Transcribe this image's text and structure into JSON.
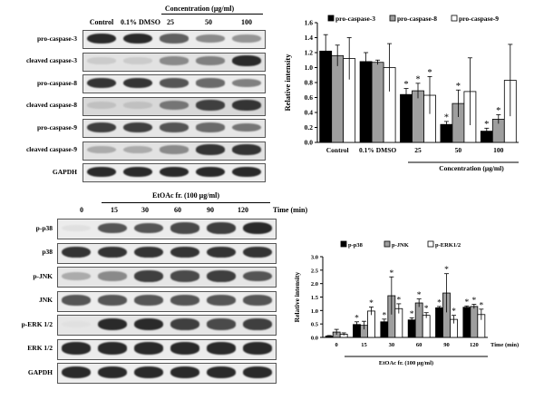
{
  "panel_a": {
    "concentration_title": "Concentration (μg/ml)",
    "lane_labels": [
      "Control",
      "0.1% DMSO",
      "25",
      "50",
      "100"
    ],
    "blots": [
      {
        "label": "pro-caspase-3",
        "intensity": [
          0.9,
          0.9,
          0.65,
          0.45,
          0.4
        ],
        "bg": "#ececec"
      },
      {
        "label": "cleaved caspase-3",
        "intensity": [
          0.15,
          0.15,
          0.45,
          0.5,
          0.9
        ],
        "bg": "#e2e2e2"
      },
      {
        "label": "pro-caspase-8",
        "intensity": [
          0.85,
          0.85,
          0.7,
          0.6,
          0.5
        ],
        "bg": "#ececec"
      },
      {
        "label": "cleaved caspase-8",
        "intensity": [
          0.2,
          0.2,
          0.55,
          0.8,
          0.85
        ],
        "bg": "#d8d8d8"
      },
      {
        "label": "pro-caspase-9",
        "intensity": [
          0.8,
          0.8,
          0.7,
          0.6,
          0.55
        ],
        "bg": "#e6e6e6"
      },
      {
        "label": "cleaved caspase-9",
        "intensity": [
          0.3,
          0.3,
          0.45,
          0.85,
          0.85
        ],
        "bg": "#e2e2e2"
      },
      {
        "label": "GAPDH",
        "intensity": [
          0.9,
          0.9,
          0.9,
          0.9,
          0.9
        ],
        "bg": "#eeeeee"
      }
    ]
  },
  "panel_b": {
    "treatment_title": "EtOAc fr. (100 μg/ml)",
    "lane_labels": [
      "0",
      "15",
      "30",
      "60",
      "90",
      "120"
    ],
    "time_label": "Time (min)",
    "blots": [
      {
        "label": "p-p38",
        "intensity": [
          0.05,
          0.7,
          0.7,
          0.75,
          0.8,
          0.9
        ],
        "bg": "#ececec"
      },
      {
        "label": "p38",
        "intensity": [
          0.85,
          0.85,
          0.85,
          0.85,
          0.85,
          0.85
        ],
        "bg": "#ececec"
      },
      {
        "label": "p-JNK",
        "intensity": [
          0.3,
          0.45,
          0.8,
          0.75,
          0.8,
          0.7
        ],
        "bg": "#e6e6e6"
      },
      {
        "label": "JNK",
        "intensity": [
          0.7,
          0.7,
          0.7,
          0.7,
          0.7,
          0.7
        ],
        "bg": "#ececec"
      },
      {
        "label": "p-ERK 1/2",
        "intensity": [
          0.05,
          0.9,
          0.9,
          0.8,
          0.75,
          0.8
        ],
        "bg": "#e6e6e6"
      },
      {
        "label": "ERK 1/2",
        "intensity": [
          0.9,
          0.9,
          0.9,
          0.9,
          0.9,
          0.9
        ],
        "bg": "#ececec"
      },
      {
        "label": "GAPDH",
        "intensity": [
          0.9,
          0.9,
          0.9,
          0.9,
          0.9,
          0.9
        ],
        "bg": "#eeeeee"
      }
    ]
  },
  "chart_data": [
    {
      "type": "bar",
      "title": "",
      "ylabel": "Relative intensity",
      "xlabel": "Concentration (μg/ml)",
      "ylim": [
        0,
        1.6
      ],
      "yticks": [
        "0.0",
        "0.2",
        "0.4",
        "0.6",
        "0.8",
        "1.0",
        "1.2",
        "1.4",
        "1.6"
      ],
      "categories": [
        "Control",
        "0.1% DMSO",
        "25",
        "50",
        "100"
      ],
      "legend": "top",
      "series": [
        {
          "name": "pro-caspase-3",
          "fill": "#000000",
          "values": [
            1.22,
            1.08,
            0.64,
            0.24,
            0.15
          ],
          "errors": [
            0.22,
            0.12,
            0.08,
            0.04,
            0.04
          ],
          "sig": [
            false,
            false,
            true,
            true,
            true
          ]
        },
        {
          "name": "pro-caspase-8",
          "fill": "#9e9e9e",
          "values": [
            1.16,
            1.07,
            0.69,
            0.52,
            0.31
          ],
          "errors": [
            0.14,
            0.03,
            0.1,
            0.18,
            0.06
          ],
          "sig": [
            false,
            false,
            true,
            true,
            true
          ]
        },
        {
          "name": "pro-caspase-9",
          "fill": "#ffffff",
          "values": [
            1.12,
            1.0,
            0.63,
            0.68,
            0.83
          ],
          "errors": [
            0.28,
            0.32,
            0.25,
            0.45,
            0.48
          ],
          "sig": [
            false,
            false,
            true,
            false,
            false
          ]
        }
      ]
    },
    {
      "type": "bar",
      "title": "",
      "ylabel": "Relative intensity",
      "xlabel": "EtOAc fr. (100 μg/ml)",
      "time_label": "Time (min)",
      "ylim": [
        0,
        3.0
      ],
      "yticks": [
        "0.0",
        "0.5",
        "1.0",
        "1.5",
        "2.0",
        "2.5",
        "3.0"
      ],
      "categories": [
        "0",
        "15",
        "30",
        "60",
        "90",
        "120"
      ],
      "legend": "top",
      "series": [
        {
          "name": "p-p38",
          "fill": "#000000",
          "values": [
            0.05,
            0.48,
            0.58,
            0.65,
            1.1,
            1.12
          ],
          "errors": [
            0.02,
            0.1,
            0.1,
            0.08,
            0.05,
            0.05
          ],
          "sig": [
            false,
            true,
            true,
            true,
            true,
            true
          ]
        },
        {
          "name": "p-JNK",
          "fill": "#9e9e9e",
          "values": [
            0.2,
            0.45,
            1.55,
            1.28,
            1.65,
            1.15
          ],
          "errors": [
            0.1,
            0.15,
            0.7,
            0.15,
            0.72,
            0.08
          ],
          "sig": [
            false,
            false,
            true,
            true,
            true,
            true
          ]
        },
        {
          "name": "p-ERK1/2",
          "fill": "#ffffff",
          "values": [
            0.12,
            0.98,
            1.07,
            0.82,
            0.67,
            0.85
          ],
          "errors": [
            0.05,
            0.15,
            0.18,
            0.1,
            0.15,
            0.2
          ],
          "sig": [
            false,
            true,
            true,
            true,
            true,
            true
          ]
        }
      ]
    }
  ]
}
